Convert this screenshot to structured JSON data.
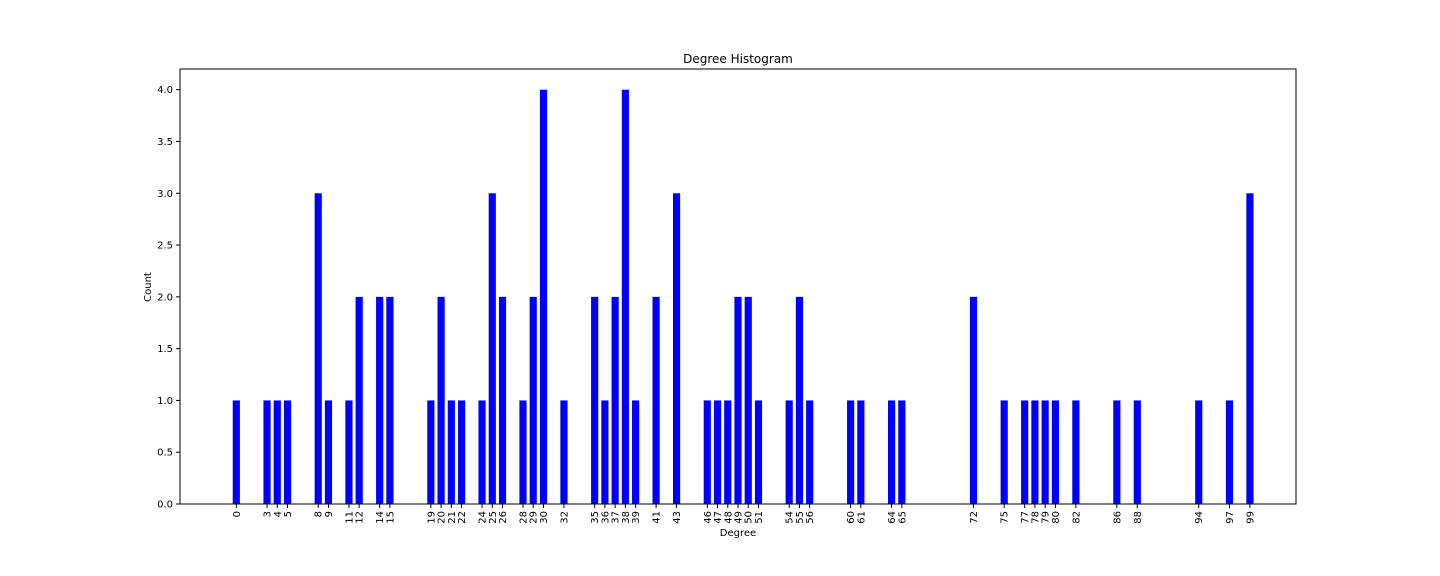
{
  "chart_data": {
    "type": "bar",
    "title": "Degree Histogram",
    "xlabel": "Degree",
    "ylabel": "Count",
    "ylim": [
      0,
      4.2
    ],
    "xlim": [
      -5.5,
      103.5
    ],
    "yticks": [
      "0.0",
      "0.5",
      "1.0",
      "1.5",
      "2.0",
      "2.5",
      "3.0",
      "3.5",
      "4.0"
    ],
    "grid": false,
    "bar_color": "#0000ff",
    "categories": [
      0,
      3,
      4,
      5,
      8,
      9,
      11,
      12,
      14,
      15,
      19,
      20,
      21,
      22,
      24,
      25,
      26,
      28,
      29,
      30,
      32,
      35,
      36,
      37,
      38,
      39,
      41,
      43,
      46,
      47,
      48,
      49,
      50,
      51,
      54,
      55,
      56,
      60,
      61,
      64,
      65,
      72,
      75,
      77,
      78,
      79,
      80,
      82,
      86,
      88,
      94,
      97,
      99
    ],
    "values": [
      1,
      1,
      1,
      1,
      3,
      1,
      1,
      2,
      2,
      2,
      1,
      2,
      1,
      1,
      1,
      3,
      2,
      1,
      2,
      4,
      1,
      2,
      1,
      2,
      4,
      1,
      2,
      3,
      1,
      1,
      1,
      2,
      2,
      1,
      1,
      2,
      1,
      1,
      1,
      1,
      1,
      2,
      1,
      1,
      1,
      1,
      1,
      1,
      1,
      1,
      1,
      1,
      3
    ]
  }
}
